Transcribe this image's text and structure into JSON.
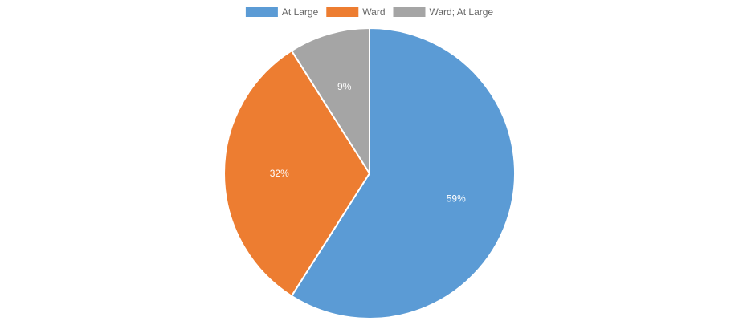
{
  "chart_data": {
    "type": "pie",
    "title": "",
    "legend_position": "top",
    "categories": [
      "At Large",
      "Ward",
      "Ward; At Large"
    ],
    "values": [
      59,
      32,
      9
    ],
    "labels": [
      "59%",
      "32%",
      "9%"
    ],
    "colors": [
      "#5b9bd5",
      "#ed7d31",
      "#a5a5a5"
    ]
  }
}
